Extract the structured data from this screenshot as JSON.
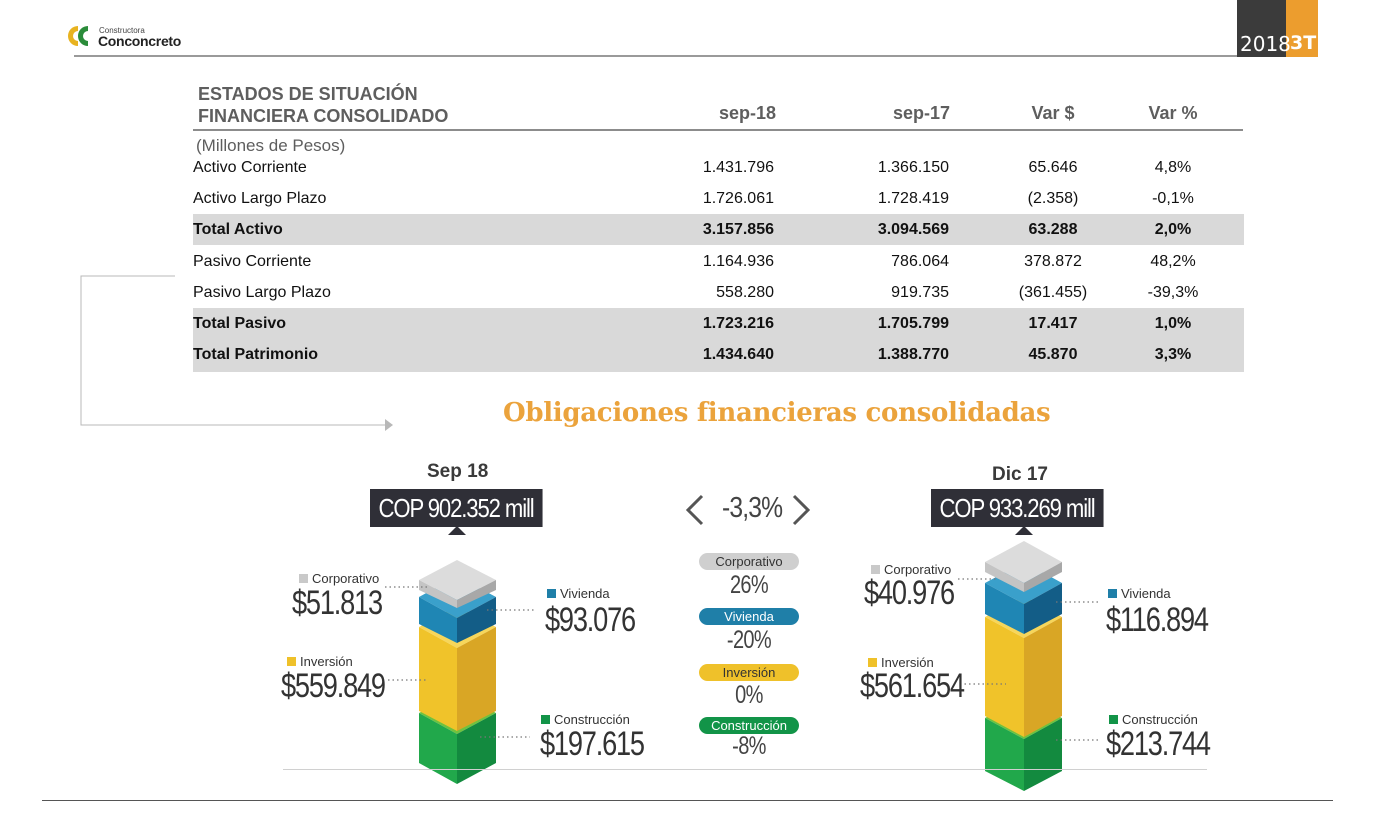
{
  "header": {
    "logo_sub": "Constructora",
    "logo_main": "Conconcreto",
    "year": "2018",
    "quarter": "3T",
    "colors": {
      "dark": "#3b3b3b",
      "accent": "#ec9d2e"
    }
  },
  "table": {
    "title_line1": "ESTADOS DE SITUACIÓN",
    "title_line2": "FINANCIERA CONSOLIDADO",
    "units": "(Millones de Pesos)",
    "columns": [
      "sep-18",
      "sep-17",
      "Var $",
      "Var %"
    ],
    "rows": [
      {
        "label": "Activo Corriente",
        "sep18": "1.431.796",
        "sep17": "1.366.150",
        "var_abs": "65.646",
        "var_pct": "4,8%"
      },
      {
        "label": "Activo Largo Plazo",
        "sep18": "1.726.061",
        "sep17": "1.728.419",
        "var_abs": "(2.358)",
        "var_pct": "-0,1%"
      },
      {
        "label": "Total Activo",
        "sep18": "3.157.856",
        "sep17": "3.094.569",
        "var_abs": "63.288",
        "var_pct": "2,0%"
      },
      {
        "label": "Pasivo Corriente",
        "sep18": "1.164.936",
        "sep17": "786.064",
        "var_abs": "378.872",
        "var_pct": "48,2%"
      },
      {
        "label": "Pasivo Largo Plazo",
        "sep18": "558.280",
        "sep17": "919.735",
        "var_abs": "(361.455)",
        "var_pct": "-39,3%"
      },
      {
        "label": "Total Pasivo",
        "sep18": "1.723.216",
        "sep17": "1.705.799",
        "var_abs": "17.417",
        "var_pct": "1,0%"
      },
      {
        "label": "Total Patrimonio",
        "sep18": "1.434.640",
        "sep17": "1.388.770",
        "var_abs": "45.870",
        "var_pct": "3,3%"
      }
    ]
  },
  "obligations": {
    "title": "Obligaciones financieras consolidadas",
    "variation_total": "-3,3%",
    "colors": {
      "Corporativo": "#c9c9c9",
      "Vivienda": "#1f7fa8",
      "Inversión": "#efc12a",
      "Construcción": "#129448"
    },
    "left": {
      "period": "Sep 18",
      "total": "COP 902.352 mill",
      "segments": {
        "corporativo": {
          "label": "Corporativo",
          "value": "$51.813"
        },
        "vivienda": {
          "label": "Vivienda",
          "value": "$93.076"
        },
        "inversion": {
          "label": "Inversión",
          "value": "$559.849"
        },
        "construccion": {
          "label": "Construcción",
          "value": "$197.615"
        }
      }
    },
    "right": {
      "period": "Dic 17",
      "total": "COP 933.269 mill",
      "segments": {
        "corporativo": {
          "label": "Corporativo",
          "value": "$40.976"
        },
        "vivienda": {
          "label": "Vivienda",
          "value": "$116.894"
        },
        "inversion": {
          "label": "Inversión",
          "value": "$561.654"
        },
        "construccion": {
          "label": "Construcción",
          "value": "$213.744"
        }
      }
    },
    "variations": [
      {
        "label": "Corporativo",
        "pct": "26%"
      },
      {
        "label": "Vivienda",
        "pct": "-20%"
      },
      {
        "label": "Inversión",
        "pct": "0%"
      },
      {
        "label": "Construcción",
        "pct": "-8%"
      }
    ]
  }
}
